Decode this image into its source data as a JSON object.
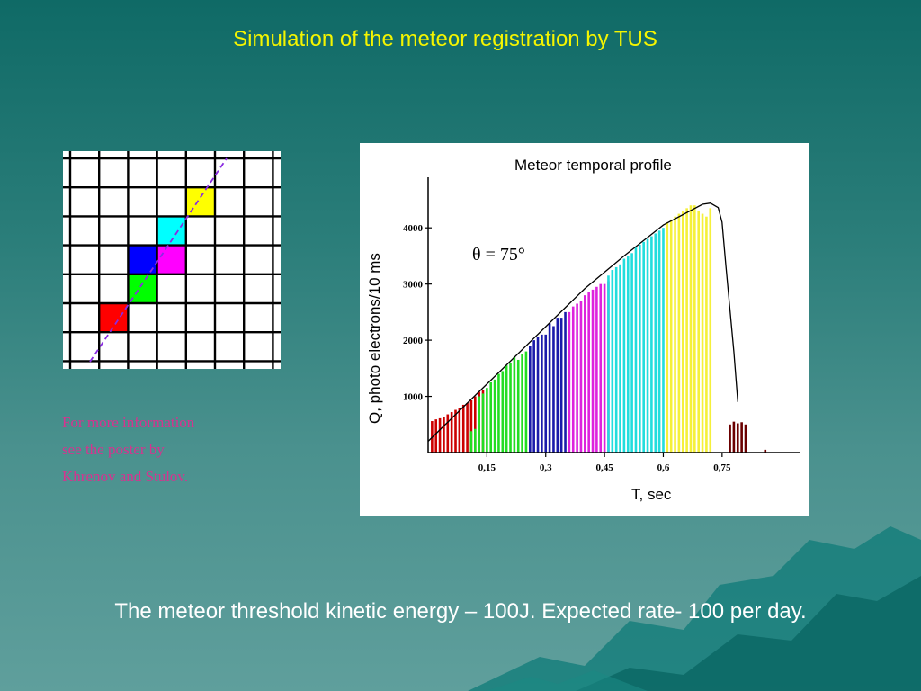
{
  "slide": {
    "title": "Simulation of the meteor registration by TUS",
    "note_lines": [
      "For more information",
      "see the poster by",
      "Khrenov and Stulov."
    ],
    "bottom_text": "The meteor threshold kinetic energy – 100J. Expected rate- 100 per day."
  },
  "pixel_grid": {
    "rows": 7,
    "cols": 7,
    "lit_cells": [
      {
        "row": 1,
        "col": 4,
        "color": "#ffff00"
      },
      {
        "row": 2,
        "col": 3,
        "color": "#00ffff"
      },
      {
        "row": 3,
        "col": 2,
        "color": "#0000ff"
      },
      {
        "row": 3,
        "col": 3,
        "color": "#ff00ff"
      },
      {
        "row": 4,
        "col": 2,
        "color": "#00ff00"
      },
      {
        "row": 5,
        "col": 1,
        "color": "#ff0000"
      }
    ],
    "track_color": "#8a2be2"
  },
  "chart_data": {
    "type": "bar",
    "title": "Meteor temporal profile",
    "xlabel": "T, sec",
    "ylabel": "Q, photo electrons/10 ms",
    "annotation": "θ  = 75°",
    "xlim": [
      0,
      0.95
    ],
    "ylim": [
      0,
      4900
    ],
    "x_ticks": [
      {
        "value": 0.15,
        "label": "0,15"
      },
      {
        "value": 0.3,
        "label": "0,3"
      },
      {
        "value": 0.45,
        "label": "0,45"
      },
      {
        "value": 0.6,
        "label": "0,6"
      },
      {
        "value": 0.75,
        "label": "0,75"
      }
    ],
    "y_ticks": [
      {
        "value": 1000,
        "label": "1000"
      },
      {
        "value": 2000,
        "label": "2000"
      },
      {
        "value": 3000,
        "label": "3000"
      },
      {
        "value": 4000,
        "label": "4000"
      }
    ],
    "profile_curve": {
      "x": [
        0,
        0.1,
        0.2,
        0.3,
        0.4,
        0.5,
        0.6,
        0.7,
        0.72,
        0.74,
        0.75,
        0.76,
        0.78,
        0.79
      ],
      "y": [
        200,
        880,
        1560,
        2240,
        2920,
        3500,
        4050,
        4420,
        4440,
        4360,
        4100,
        3300,
        1800,
        900
      ]
    },
    "series": [
      {
        "color": "#cc0000",
        "x": [
          0.01,
          0.02,
          0.03,
          0.04,
          0.05,
          0.06,
          0.07,
          0.08,
          0.09,
          0.1,
          0.11,
          0.12,
          0.13,
          0.14
        ],
        "values": [
          560,
          590,
          610,
          640,
          680,
          720,
          760,
          800,
          850,
          880,
          930,
          1000,
          1080,
          1120
        ]
      },
      {
        "color": "#22dd22",
        "x": [
          0.11,
          0.12,
          0.13,
          0.14,
          0.15,
          0.16,
          0.17,
          0.18,
          0.19,
          0.2,
          0.21,
          0.22,
          0.23,
          0.24,
          0.25
        ],
        "values": [
          380,
          420,
          1000,
          1050,
          1150,
          1250,
          1300,
          1400,
          1450,
          1550,
          1600,
          1700,
          1650,
          1750,
          1800
        ]
      },
      {
        "color": "#1a1aaa",
        "x": [
          0.26,
          0.27,
          0.28,
          0.29,
          0.3,
          0.31,
          0.32,
          0.33,
          0.34,
          0.35
        ],
        "values": [
          1900,
          2000,
          2050,
          2100,
          2100,
          2300,
          2250,
          2400,
          2400,
          2500
        ]
      },
      {
        "color": "#dd22dd",
        "x": [
          0.36,
          0.37,
          0.38,
          0.39,
          0.4,
          0.41,
          0.42,
          0.43,
          0.44,
          0.45,
          0.46
        ],
        "values": [
          2500,
          2600,
          2650,
          2700,
          2800,
          2850,
          2900,
          2950,
          3000,
          3000,
          3050
        ]
      },
      {
        "color": "#22dddd",
        "x": [
          0.46,
          0.47,
          0.48,
          0.49,
          0.5,
          0.51,
          0.52,
          0.53,
          0.54,
          0.55,
          0.56,
          0.57,
          0.58,
          0.59,
          0.6
        ],
        "values": [
          3150,
          3250,
          3300,
          3350,
          3450,
          3500,
          3550,
          3650,
          3700,
          3750,
          3800,
          3850,
          3900,
          3950,
          4000
        ]
      },
      {
        "color": "#f5f03a",
        "x": [
          0.61,
          0.62,
          0.63,
          0.64,
          0.65,
          0.66,
          0.67,
          0.68,
          0.69,
          0.7,
          0.71,
          0.72
        ],
        "values": [
          4100,
          4150,
          4200,
          4250,
          4300,
          4350,
          4400,
          4400,
          4300,
          4250,
          4200,
          4350
        ]
      },
      {
        "color": "#6b0000",
        "x": [
          0.77,
          0.78,
          0.79,
          0.8,
          0.81,
          0.86
        ],
        "values": [
          500,
          550,
          520,
          540,
          500,
          50
        ]
      }
    ]
  }
}
